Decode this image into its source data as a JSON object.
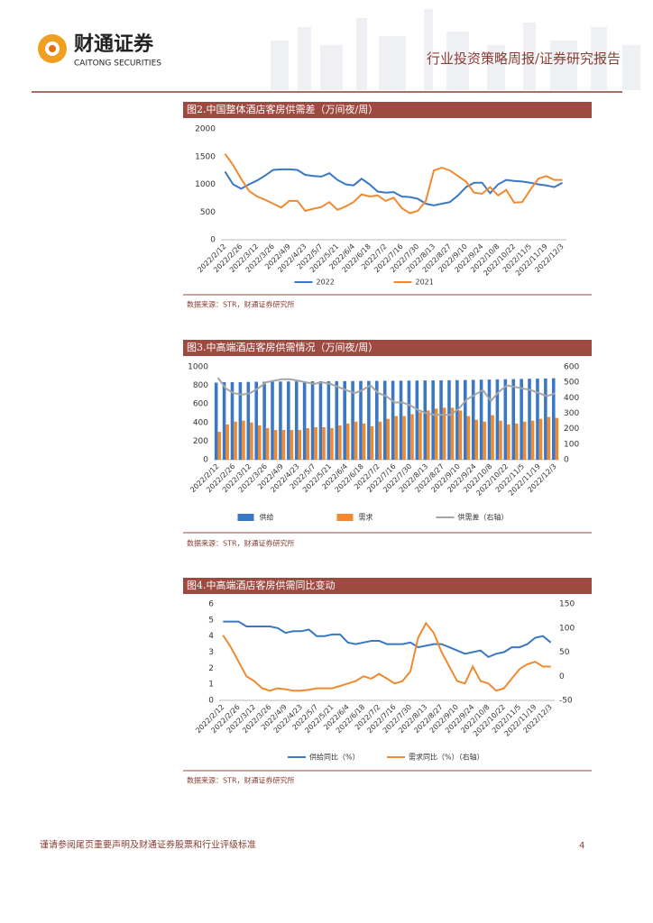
{
  "header": {
    "logo_cn": "财通证券",
    "logo_en": "CAITONG SECURITIES",
    "report_type": "行业投资策略周报/证券研究报告"
  },
  "chart_data": [
    {
      "type": "line",
      "title": "图2.中国整体酒店客房供需差（万间夜/周）",
      "source": "数据来源：STR，财通证券研究所",
      "categories": [
        "2022/2/12",
        null,
        "2022/2/26",
        null,
        "2022/3/12",
        null,
        "2022/3/26",
        null,
        "2022/4/9",
        null,
        "2022/4/23",
        null,
        "2022/5/7",
        null,
        "2022/5/21",
        null,
        "2022/6/4",
        null,
        "2022/6/18",
        null,
        "2022/7/2",
        null,
        "2022/7/16",
        null,
        "2022/7/30",
        null,
        "2022/8/13",
        null,
        "2022/8/27",
        null,
        "2022/9/10",
        null,
        "2022/9/24",
        null,
        "2022/10/8",
        null,
        "2022/10/22",
        null,
        "2022/11/5",
        null,
        "2022/11/19",
        null,
        "2022/12/3"
      ],
      "ylim": [
        0,
        2000
      ],
      "yticks": [
        0,
        500,
        1000,
        1500,
        2000
      ],
      "series": [
        {
          "name": "2022",
          "color": "#3a78c3",
          "values": [
            1230,
            1000,
            920,
            1000,
            1070,
            1160,
            1260,
            1270,
            1270,
            1260,
            1170,
            1150,
            1140,
            1200,
            1080,
            1000,
            980,
            1100,
            1000,
            870,
            850,
            860,
            780,
            770,
            740,
            650,
            620,
            650,
            680,
            800,
            950,
            1030,
            1030,
            840,
            1000,
            1080,
            1060,
            1050,
            1030,
            1000,
            980,
            950,
            1030
          ]
        },
        {
          "name": "2021",
          "color": "#f08a30",
          "values": [
            1550,
            1350,
            1100,
            880,
            780,
            720,
            650,
            580,
            700,
            700,
            520,
            560,
            590,
            680,
            540,
            600,
            680,
            820,
            780,
            800,
            700,
            760,
            570,
            480,
            520,
            700,
            1250,
            1300,
            1250,
            1150,
            1050,
            850,
            830,
            950,
            800,
            900,
            670,
            680,
            900,
            1100,
            1150,
            1080,
            1080
          ]
        }
      ]
    },
    {
      "type": "bar",
      "title": "图3.中高端酒店客房供需情况（万间夜/周）",
      "source": "数据来源：STR，财通证券研究所",
      "categories": [
        "2022/2/12",
        null,
        "2022/2/26",
        null,
        "2022/3/12",
        null,
        "2022/3/26",
        null,
        "2022/4/9",
        null,
        "2022/4/23",
        null,
        "2022/5/7",
        null,
        "2022/5/21",
        null,
        "2022/6/4",
        null,
        "2022/6/18",
        null,
        "2022/7/2",
        null,
        "2022/7/16",
        null,
        "2022/7/30",
        null,
        "2022/8/13",
        null,
        "2022/8/27",
        null,
        "2022/9/10",
        null,
        "2022/9/24",
        null,
        "2022/10/8",
        null,
        "2022/10/22",
        null,
        "2022/11/5",
        null,
        "2022/11/19",
        null,
        "2022/12/3"
      ],
      "ylim": [
        0,
        1000
      ],
      "yticks": [
        0,
        200,
        400,
        600,
        800,
        1000
      ],
      "y2lim": [
        0,
        600
      ],
      "y2ticks": [
        0,
        100,
        200,
        300,
        400,
        500,
        600
      ],
      "series": [
        {
          "name": "供给",
          "type": "bar",
          "color": "#3a78c3",
          "values": [
            830,
            835,
            835,
            835,
            838,
            840,
            840,
            842,
            842,
            843,
            843,
            845,
            845,
            845,
            845,
            846,
            846,
            847,
            848,
            848,
            849,
            850,
            850,
            851,
            852,
            852,
            853,
            854,
            855,
            856,
            857,
            858,
            860,
            862,
            863,
            865,
            867,
            868,
            870,
            872,
            873,
            875,
            878
          ]
        },
        {
          "name": "需求",
          "type": "bar",
          "color": "#f08a30",
          "values": [
            300,
            380,
            410,
            420,
            400,
            370,
            340,
            320,
            320,
            320,
            320,
            340,
            350,
            350,
            340,
            370,
            390,
            410,
            390,
            360,
            410,
            440,
            470,
            470,
            490,
            510,
            530,
            550,
            560,
            560,
            530,
            470,
            430,
            410,
            480,
            420,
            380,
            390,
            410,
            420,
            440,
            460,
            450
          ]
        },
        {
          "name": "供需差（右轴）",
          "type": "line",
          "axis": "y2",
          "color": "#a6a6a6",
          "values": [
            530,
            460,
            430,
            420,
            430,
            460,
            500,
            510,
            520,
            520,
            510,
            500,
            490,
            500,
            490,
            470,
            450,
            430,
            450,
            480,
            430,
            410,
            370,
            370,
            350,
            320,
            300,
            290,
            290,
            290,
            330,
            390,
            420,
            450,
            380,
            440,
            480,
            470,
            460,
            450,
            430,
            410,
            430
          ]
        }
      ]
    },
    {
      "type": "line",
      "title": "图4.中高端酒店客房供需同比变动",
      "source": "数据来源：STR，财通证券研究所",
      "categories": [
        "2022/2/12",
        null,
        "2022/2/26",
        null,
        "2022/3/12",
        null,
        "2022/3/26",
        null,
        "2022/4/9",
        null,
        "2022/4/23",
        null,
        "2022/5/7",
        null,
        "2022/5/21",
        null,
        "2022/6/4",
        null,
        "2022/6/18",
        null,
        "2022/7/2",
        null,
        "2022/7/16",
        null,
        "2022/7/30",
        null,
        "2022/8/13",
        null,
        "2022/8/27",
        null,
        "2022/9/10",
        null,
        "2022/9/24",
        null,
        "2022/10/8",
        null,
        "2022/10/22",
        null,
        "2022/11/5",
        null,
        "2022/11/19",
        null,
        "2022/12/3"
      ],
      "ylim": [
        0,
        6
      ],
      "yticks": [
        0,
        1,
        2,
        3,
        4,
        5,
        6
      ],
      "y2lim": [
        -50,
        150
      ],
      "y2ticks": [
        -50,
        0,
        50,
        100,
        150
      ],
      "series": [
        {
          "name": "供给同比（%）",
          "color": "#3a78c3",
          "values": [
            4.9,
            4.9,
            4.9,
            4.6,
            4.6,
            4.6,
            4.6,
            4.5,
            4.2,
            4.3,
            4.3,
            4.4,
            4.0,
            4.0,
            4.1,
            4.1,
            3.6,
            3.5,
            3.6,
            3.7,
            3.7,
            3.5,
            3.5,
            3.5,
            3.6,
            3.3,
            3.4,
            3.5,
            3.5,
            3.3,
            3.1,
            2.9,
            3.0,
            3.1,
            2.7,
            2.9,
            3.0,
            3.3,
            3.3,
            3.5,
            3.9,
            4.0,
            3.6
          ]
        },
        {
          "name": "需求同比（%）（右轴）",
          "axis": "y2",
          "color": "#f08a30",
          "values": [
            85,
            60,
            30,
            0,
            -10,
            -25,
            -30,
            -25,
            -27,
            -30,
            -30,
            -28,
            -25,
            -25,
            -25,
            -20,
            -15,
            -10,
            0,
            -5,
            5,
            -5,
            -15,
            -10,
            10,
            80,
            110,
            90,
            50,
            20,
            -10,
            -15,
            20,
            -10,
            -15,
            -30,
            -25,
            -5,
            15,
            25,
            30,
            20,
            20
          ]
        }
      ]
    }
  ],
  "footer": {
    "disclaimer": "谨请参阅尾页重要声明及财通证券股票和行业评级标准",
    "page": "4"
  }
}
